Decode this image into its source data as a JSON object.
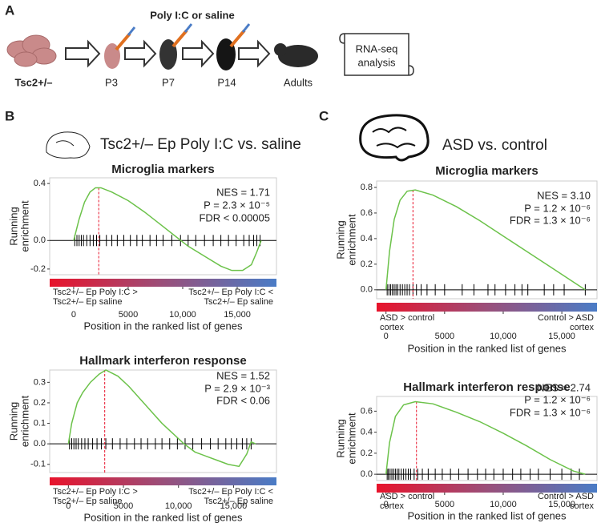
{
  "panel_labels": [
    "A",
    "B",
    "C"
  ],
  "panel_a": {
    "title": "Poly I:C or saline",
    "genotype": "Tsc2+/–",
    "stages": [
      "P3",
      "P7",
      "P14",
      "Adults"
    ],
    "output": [
      "RNA-seq",
      "analysis"
    ]
  },
  "panel_b_heading": "Tsc2+/– Ep Poly I:C vs. saline",
  "panel_c_heading": "ASD vs. control",
  "chart_data": [
    {
      "type": "line",
      "title": "Microglia markers",
      "ylabel": [
        "Running",
        "enrichment"
      ],
      "xlabel": "Position in the ranked list of genes",
      "annotations": [
        "NES = 1.71",
        "P = 2.3 × 10⁻⁵",
        "FDR < 0.00005"
      ],
      "color": "#6cc24a",
      "x": [
        0,
        500,
        1000,
        1500,
        2000,
        2500,
        3500,
        5000,
        6500,
        8000,
        9500,
        10500,
        12000,
        13500,
        14500,
        15500,
        16300,
        16800,
        17200
      ],
      "values": [
        0,
        0.15,
        0.27,
        0.34,
        0.37,
        0.37,
        0.34,
        0.28,
        0.2,
        0.11,
        0.02,
        -0.04,
        -0.11,
        -0.18,
        -0.21,
        -0.21,
        -0.17,
        -0.08,
        0
      ],
      "hits": [
        100,
        300,
        500,
        700,
        900,
        1200,
        1500,
        1800,
        2100,
        2400,
        3000,
        3500,
        4000,
        4600,
        5200,
        5800,
        6300,
        7000,
        7600,
        8200,
        9000,
        9800,
        10500,
        11200,
        12000,
        12800,
        13500,
        14200,
        14900,
        15600,
        16100,
        16500,
        16800,
        17100
      ],
      "leading_edge": 2300,
      "gradient_labels": {
        "left": [
          "Tsc2+/– Ep Poly I:C >",
          "Tsc2+/– Ep saline"
        ],
        "right": [
          "Tsc2+/– Ep Poly I:C <",
          "Tsc2+/– Ep saline"
        ]
      },
      "xlim": [
        -2200,
        18600
      ],
      "ylim": [
        -0.24,
        0.44
      ],
      "xticks": [
        0,
        5000,
        {
          "value": 10000,
          "label": "10,000"
        },
        {
          "value": 15000,
          "label": "15,000"
        }
      ],
      "yticks": [
        0.4,
        {
          "value": 0,
          "label": "0.0"
        },
        -0.2
      ]
    },
    {
      "type": "line",
      "title": "Hallmark interferon response",
      "ylabel": [
        "Running",
        "enrichment"
      ],
      "xlabel": "Position in the ranked list of genes",
      "annotations": [
        "NES = 1.52",
        "P = 2.9 × 10⁻³",
        "FDR < 0.06"
      ],
      "color": "#6cc24a",
      "x": [
        0,
        300,
        800,
        1300,
        2000,
        2800,
        3400,
        4500,
        5500,
        6500,
        7500,
        8500,
        9500,
        10500,
        11500,
        12500,
        13500,
        14500,
        15500,
        16200,
        16600,
        17000
      ],
      "values": [
        0,
        0.1,
        0.2,
        0.25,
        0.3,
        0.34,
        0.36,
        0.33,
        0.28,
        0.22,
        0.16,
        0.1,
        0.05,
        0,
        -0.04,
        -0.06,
        -0.08,
        -0.1,
        -0.11,
        -0.05,
        0.01,
        0
      ],
      "hits": [
        100,
        300,
        500,
        700,
        900,
        1200,
        1500,
        1800,
        2200,
        2600,
        3000,
        3400,
        4000,
        4700,
        5300,
        6000,
        6600,
        7200,
        7900,
        8500,
        9200,
        9900,
        10600,
        11300,
        12100,
        12900,
        13600,
        14300,
        14800,
        15300,
        15800,
        16200,
        16600
      ],
      "leading_edge": 3300,
      "gradient_labels": {
        "left": [
          "Tsc2+/– Ep Poly I:C >",
          "Tsc2+/– Ep saline"
        ],
        "right": [
          "Tsc2+/– Ep Poly I:C <",
          "Tsc2+/– Ep saline"
        ]
      },
      "xlim": [
        -1700,
        18900
      ],
      "ylim": [
        -0.14,
        0.36
      ],
      "xticks": [
        0,
        5000,
        {
          "value": 10000,
          "label": "10,000"
        },
        {
          "value": 15000,
          "label": "15,000"
        }
      ],
      "yticks": [
        0.3,
        0.2,
        0.1,
        {
          "value": 0,
          "label": "0.0"
        },
        -0.1
      ]
    },
    {
      "type": "line",
      "title": "Microglia markers",
      "ylabel": [
        "Running",
        "enrichment"
      ],
      "xlabel": "Position in the ranked list of genes",
      "annotations": [
        "NES = 3.10",
        "P = 1.2 × 10⁻⁶",
        "FDR = 1.3 × 10⁻⁶"
      ],
      "color": "#6cc24a",
      "x": [
        0,
        300,
        700,
        1200,
        1800,
        2500,
        4000,
        6000,
        8000,
        10000,
        12000,
        14000,
        16000,
        17000
      ],
      "values": [
        0,
        0.3,
        0.55,
        0.7,
        0.77,
        0.78,
        0.74,
        0.65,
        0.54,
        0.42,
        0.3,
        0.18,
        0.06,
        0
      ],
      "hits": [
        100,
        250,
        400,
        550,
        700,
        850,
        1000,
        1200,
        1400,
        1600,
        1800,
        2000,
        2300,
        2600,
        3000,
        3500,
        4200,
        5000,
        6500,
        7500,
        8700,
        9300,
        10200,
        11000,
        11600,
        12100,
        13500,
        14300,
        15200,
        17000
      ],
      "leading_edge": 2300,
      "gradient_labels": {
        "left": [
          "ASD > control",
          "cortex"
        ],
        "right": [
          "Control > ASD",
          "cortex"
        ]
      },
      "xlim": [
        -800,
        18000
      ],
      "ylim": [
        -0.07,
        0.85
      ],
      "xticks": [
        0,
        5000,
        {
          "value": 10000,
          "label": "10,000"
        },
        {
          "value": 15000,
          "label": "15,000"
        }
      ],
      "yticks": [
        0.8,
        0.6,
        0.4,
        0.2,
        {
          "value": 0,
          "label": "0.0"
        }
      ]
    },
    {
      "type": "line",
      "title": "Hallmark interferon response",
      "ylabel": [
        "Running",
        "enrichment"
      ],
      "xlabel": "Position in the ranked list of genes",
      "annotations": [
        "NES = 2.74",
        "P = 1.2 × 10⁻⁶",
        "FDR = 1.3 × 10⁻⁶"
      ],
      "color": "#6cc24a",
      "x": [
        0,
        300,
        800,
        1500,
        2500,
        4000,
        6000,
        8000,
        10000,
        12000,
        14000,
        16000,
        17000
      ],
      "values": [
        0,
        0.3,
        0.55,
        0.66,
        0.69,
        0.67,
        0.59,
        0.5,
        0.39,
        0.27,
        0.14,
        0.03,
        0
      ],
      "hits": [
        100,
        200,
        350,
        500,
        650,
        800,
        950,
        1100,
        1300,
        1500,
        1700,
        1900,
        2100,
        2400,
        2700,
        3100,
        3600,
        4200,
        4800,
        5500,
        6200,
        7000,
        7800,
        8500,
        9200,
        10000,
        10800,
        11500,
        12300,
        13000,
        14000,
        15000,
        15800,
        16500
      ],
      "leading_edge": 2600,
      "gradient_labels": {
        "left": [
          "ASD > control",
          "cortex"
        ],
        "right": [
          "Control > ASD",
          "cortex"
        ]
      },
      "xlim": [
        -800,
        18000
      ],
      "ylim": [
        -0.06,
        0.74
      ],
      "xticks": [
        0,
        5000,
        {
          "value": 10000,
          "label": "10,000"
        },
        {
          "value": 15000,
          "label": "15,000"
        }
      ],
      "yticks": [
        0.6,
        0.4,
        0.2,
        {
          "value": 0,
          "label": "0.0"
        }
      ]
    }
  ]
}
